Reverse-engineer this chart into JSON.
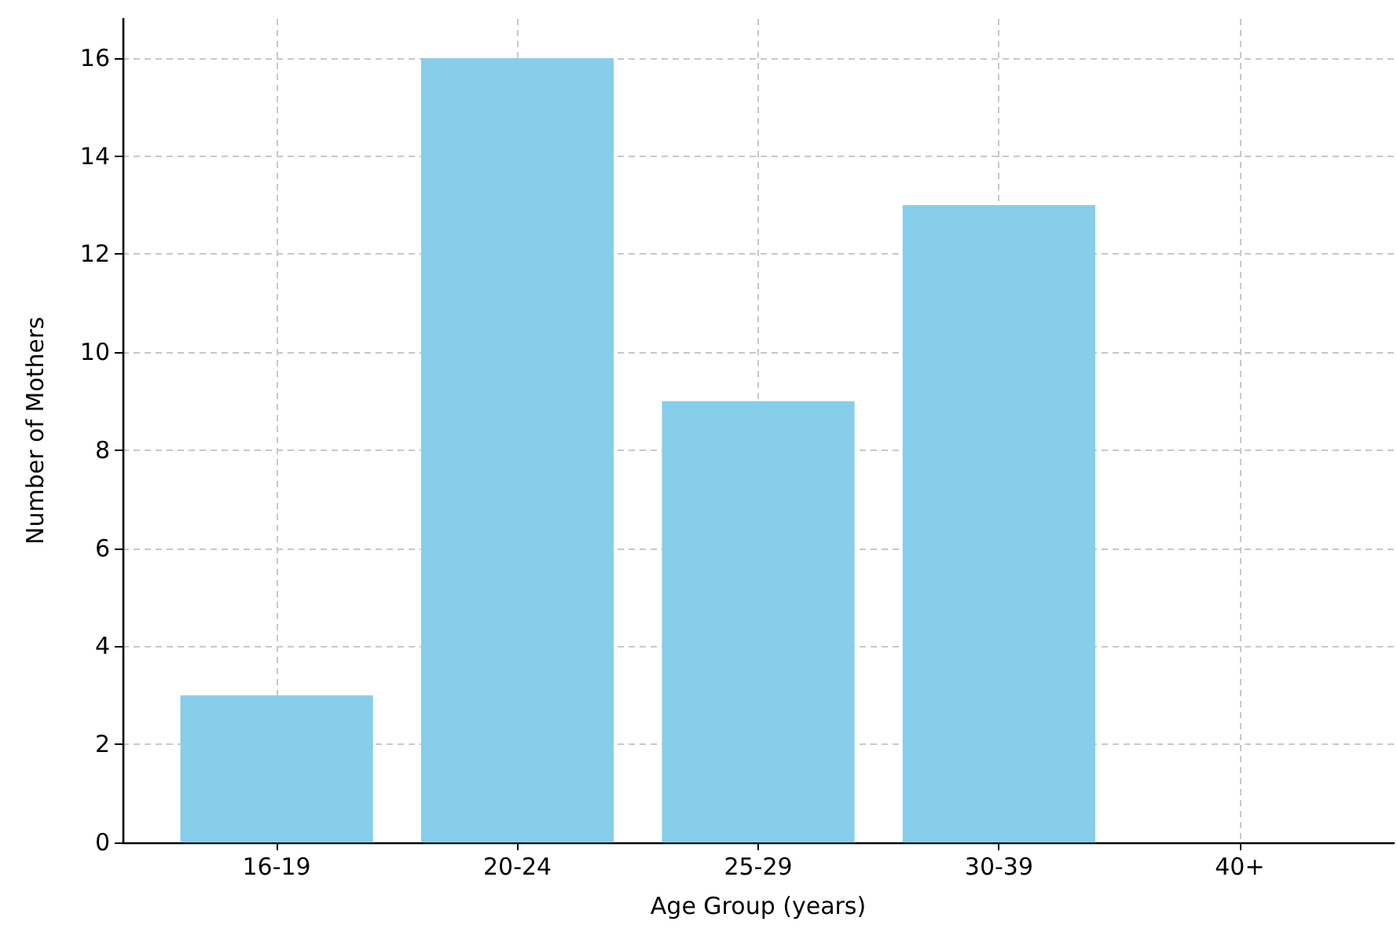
{
  "chart_data": {
    "type": "bar",
    "xlabel": "Age Group (years)",
    "ylabel": "Number of Mothers",
    "categories": [
      "16-19",
      "20-24",
      "25-29",
      "30-39",
      "40+"
    ],
    "values": [
      3,
      16,
      9,
      13,
      0
    ],
    "color": "#87ceeb",
    "ylim": [
      0,
      16.8
    ],
    "yticks": [
      0,
      2,
      4,
      6,
      8,
      10,
      12,
      14,
      16
    ],
    "grid": true
  }
}
